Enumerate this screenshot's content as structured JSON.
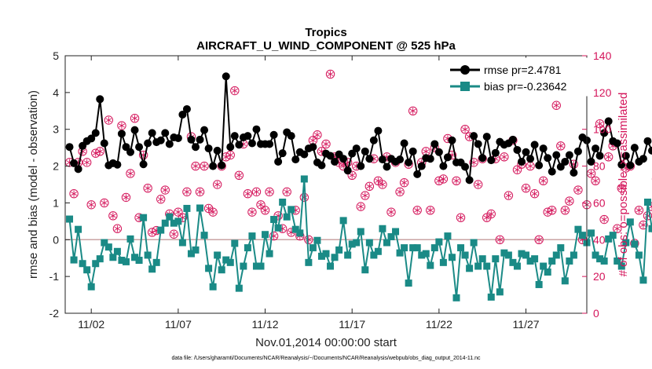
{
  "chart_data": {
    "type": "line",
    "title": "Tropics",
    "subtitle": "AIRCRAFT_U_WIND_COMPONENT @ 525 hPa",
    "xlabel": "Nov.01,2014 00:00:00 start",
    "ylabel": "rmse and bias (model - observation)",
    "y2label": "# of obs: o=possible; ×=assimilated",
    "footnote": "data file: /Users/gharamti/Documents/NCAR/Reanalysis/~/Documents/NCAR/Reanalysis/webpub/obs_diag_output_2014-11.nc",
    "xlim": [
      0.5,
      30.5
    ],
    "ylim": [
      -2,
      5
    ],
    "y2lim": [
      0,
      140
    ],
    "x_ticks": [
      {
        "value": 2,
        "label": "11/02"
      },
      {
        "value": 7,
        "label": "11/07"
      },
      {
        "value": 12,
        "label": "11/12"
      },
      {
        "value": 17,
        "label": "11/17"
      },
      {
        "value": 22,
        "label": "11/22"
      },
      {
        "value": 27,
        "label": "11/27"
      }
    ],
    "y_ticks": [
      -2,
      -1,
      0,
      1,
      2,
      3,
      4,
      5
    ],
    "y2_ticks": [
      0,
      20,
      40,
      60,
      80,
      100,
      120,
      140
    ],
    "x_start": 0.75,
    "x_step": 0.25,
    "series": [
      {
        "name": "rmse",
        "legend": "rmse pr=2.4781",
        "color": "#000000",
        "marker": "circle",
        "values": [
          2.52,
          2.08,
          1.92,
          2.55,
          2.68,
          2.75,
          2.9,
          3.82,
          2.62,
          2.02,
          2.08,
          2.04,
          2.88,
          2.52,
          2.38,
          2.98,
          2.52,
          2.05,
          2.62,
          2.9,
          2.65,
          2.7,
          2.9,
          2.6,
          2.78,
          2.76,
          3.4,
          3.55,
          2.72,
          2.52,
          2.72,
          2.98,
          2.48,
          2.0,
          2.42,
          2.02,
          4.44,
          2.52,
          2.82,
          2.58,
          2.78,
          2.82,
          2.62,
          3.0,
          2.6,
          2.6,
          2.6,
          2.85,
          2.12,
          2.35,
          2.92,
          2.82,
          2.18,
          2.38,
          2.32,
          2.48,
          2.52,
          2.1,
          2.02,
          2.34,
          2.28,
          2.12,
          2.32,
          2.2,
          1.88,
          2.34,
          2.48,
          2.0,
          2.4,
          2.2,
          2.7,
          2.96,
          2.18,
          1.98,
          2.2,
          2.12,
          2.18,
          2.62,
          2.1,
          2.4,
          1.78,
          2.0,
          2.22,
          2.2,
          2.6,
          2.38,
          2.0,
          2.24,
          2.7,
          2.1,
          2.1,
          1.98,
          1.62,
          2.82,
          2.6,
          2.22,
          2.8,
          2.16,
          2.36,
          2.66,
          2.58,
          2.62,
          2.72,
          2.44,
          2.12,
          2.38,
          2.2,
          2.58,
          2.02,
          2.48,
          2.22,
          1.85,
          2.3,
          1.98,
          2.12,
          2.3,
          1.82,
          2.4,
          2.78,
          2.7,
          2.12,
          2.48,
          2.28,
          2.9,
          3.22,
          2.68,
          2.62,
          2.04,
          2.28,
          2.02,
          2.5,
          2.12,
          2.2,
          2.68,
          2.42,
          2.58,
          2.32,
          1.96,
          2.28,
          1.88,
          2.42,
          2.28,
          2.36,
          2.22,
          2.42,
          2.2,
          2.38,
          2.38,
          2.22,
          2.34,
          2.02,
          2.26,
          2.28,
          2.24,
          2.42,
          2.26,
          2.06,
          2.92,
          2.52
        ]
      },
      {
        "name": "bias",
        "legend": "bias pr=-0.23642",
        "color": "#1a8a86",
        "marker": "square",
        "values": [
          0.56,
          -0.55,
          0.28,
          -0.65,
          -0.82,
          -1.28,
          -0.65,
          -0.52,
          -0.08,
          -0.2,
          -0.48,
          -0.32,
          -0.56,
          -0.6,
          0.02,
          -0.48,
          -0.56,
          0.6,
          -0.42,
          -0.8,
          -0.62,
          0.26,
          0.45,
          0.62,
          0.45,
          0.5,
          -0.08,
          0.85,
          -0.38,
          -0.28,
          0.86,
          0.12,
          -0.78,
          -1.28,
          -0.42,
          -0.82,
          -0.55,
          -0.62,
          -0.1,
          -1.32,
          -0.72,
          -0.22,
          0.1,
          -0.72,
          -0.72,
          0.14,
          -0.38,
          0.55,
          0.32,
          1.02,
          0.62,
          0.82,
          0.28,
          0.18,
          1.65,
          -0.62,
          -0.22,
          -0.02,
          -0.45,
          -0.38,
          -0.72,
          -0.48,
          -0.28,
          0.52,
          -0.42,
          -0.12,
          -0.08,
          0.22,
          -0.82,
          -0.08,
          -0.42,
          -0.32,
          0.3,
          -0.08,
          0.08,
          0.22,
          -0.36,
          -0.22,
          -1.18,
          -0.22,
          -0.22,
          -0.42,
          -0.38,
          -0.7,
          -0.22,
          -0.06,
          -0.62,
          0.1,
          -0.48,
          -1.58,
          -0.22,
          -0.42,
          -0.78,
          -0.08,
          -0.72,
          -0.52,
          -0.72,
          -1.56,
          -0.52,
          -1.42,
          -0.36,
          -0.42,
          -0.62,
          -0.72,
          -0.38,
          -0.42,
          -0.58,
          -0.52,
          -1.22,
          -0.72,
          -0.88,
          -0.58,
          -0.42,
          -0.22,
          -1.12,
          -0.58,
          -0.42,
          0.28,
          0.12,
          -0.08,
          0.18,
          -0.42,
          -0.52,
          -0.58,
          0.02,
          0.12,
          -0.58,
          -0.72,
          -0.08,
          0.48,
          -0.12,
          -0.42,
          -1.1,
          1.02,
          0.3,
          -0.38,
          0.22,
          -0.68,
          -0.52,
          -0.42,
          -0.72,
          -0.58,
          0.12,
          -0.32,
          -0.52,
          0.28,
          0.25,
          -0.42,
          0.28,
          -0.08,
          0.32,
          -0.95,
          -1.0,
          0.12
        ]
      }
    ],
    "obs_counts": {
      "possible_color": "#d4145a",
      "possible": [
        82,
        65,
        82,
        88,
        82,
        59,
        87,
        88,
        60,
        105,
        53,
        46,
        102,
        63,
        76,
        106,
        52,
        86,
        68,
        44,
        45,
        62,
        67,
        54,
        43,
        55,
        52,
        66,
        96,
        80,
        66,
        80,
        57,
        55,
        70,
        80,
        85,
        86,
        121,
        75,
        92,
        65,
        55,
        66,
        59,
        56,
        66,
        42,
        53,
        46,
        66,
        44,
        56,
        42,
        63,
        40,
        94,
        97,
        88,
        92,
        130,
        85,
        82,
        80,
        82,
        75,
        80,
        58,
        64,
        69,
        84,
        72,
        70,
        85,
        55,
        82,
        66,
        71,
        81,
        110,
        56,
        82,
        88,
        56,
        90,
        72,
        73,
        95,
        86,
        72,
        52,
        100,
        96,
        82,
        70,
        84,
        52,
        54,
        84,
        40,
        85,
        64,
        94,
        78,
        81,
        68,
        80,
        65,
        40,
        72,
        55,
        56,
        113,
        91,
        56,
        61,
        81,
        67,
        40,
        59,
        76,
        72,
        103,
        51,
        85,
        91,
        46,
        68,
        79,
        80,
        38,
        56,
        48,
        53,
        58,
        73,
        52,
        75,
        51,
        62,
        98,
        66,
        60,
        83,
        102,
        92,
        94,
        80,
        88,
        45,
        0
      ]
    }
  },
  "legend": {
    "position": "top-right"
  },
  "colors": {
    "background": "#ffffff",
    "axis": "#222222",
    "zero_line": "#c9a3a3",
    "right_axis": "#d4145a"
  }
}
